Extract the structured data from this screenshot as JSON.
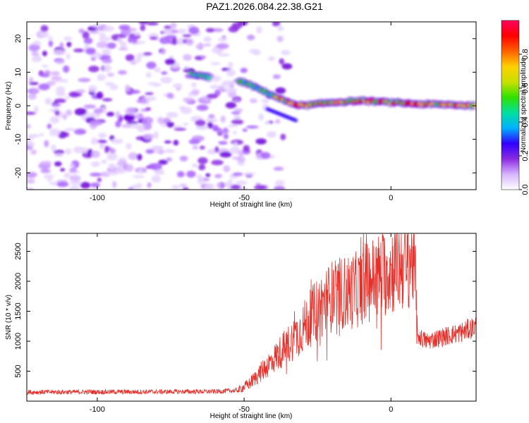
{
  "title": "PAZ1.2026.084.22.38.G21",
  "chart_data": [
    {
      "type": "heatmap",
      "name": "spectrogram",
      "xlabel": "Height of straight line (km)",
      "ylabel": "Frequency (Hz)",
      "xlim": [
        -124,
        29
      ],
      "ylim": [
        -25,
        25
      ],
      "xticks": [
        -100,
        -50,
        0
      ],
      "yticks": [
        -20,
        -10,
        0,
        10,
        20
      ],
      "xtick_labels": [
        "-100",
        "-50",
        "0"
      ],
      "ytick_labels": [
        "-20",
        "-10",
        "0",
        "10",
        "20"
      ],
      "colorbar": {
        "label": "Normalized spectral amplitude",
        "range": [
          0.0,
          1.0
        ],
        "ticks": [
          0.0,
          0.2,
          0.4,
          0.6,
          0.8
        ],
        "tick_labels": [
          "0.0",
          "0.2",
          "0.4",
          "0.6",
          "0.8"
        ],
        "colors": [
          "#ffffff",
          "#d8b4ff",
          "#8a2be2",
          "#3000ff",
          "#00b0ff",
          "#00e0a0",
          "#30e000",
          "#c8e000",
          "#ffd000",
          "#ff6000",
          "#ff0000",
          "#ff0060"
        ]
      },
      "signal_track": {
        "description_points_height_km": [
          -70,
          -65,
          -60,
          -50,
          -45,
          -40,
          -35,
          -30,
          -25,
          -20,
          -10,
          0,
          10,
          20,
          29
        ],
        "description_points_freq_hz": [
          10,
          9,
          8,
          7,
          5,
          3,
          1,
          0,
          0.5,
          1,
          1.5,
          1,
          0.5,
          0.3,
          0
        ]
      }
    },
    {
      "type": "line",
      "name": "snr",
      "xlabel": "Height of straight line (km)",
      "ylabel": "SNR (10 * v/v)",
      "xlim": [
        -124,
        29
      ],
      "ylim": [
        0,
        2800
      ],
      "xticks": [
        -100,
        -50,
        0
      ],
      "yticks": [
        500,
        1000,
        1500,
        2000,
        2500
      ],
      "xtick_labels": [
        "-100",
        "-50",
        "0"
      ],
      "ytick_labels": [
        "500",
        "1000",
        "1500",
        "2000",
        "2500"
      ],
      "color": "#e8302a",
      "envelope": {
        "x": [
          -124,
          -60,
          -52,
          -48,
          -44,
          -40,
          -36,
          -32,
          -28,
          -24,
          -20,
          -16,
          -12,
          -8,
          -4,
          0,
          4,
          8,
          9,
          12,
          16,
          20,
          24,
          29
        ],
        "y": [
          150,
          160,
          180,
          300,
          500,
          700,
          900,
          1100,
          1350,
          1600,
          1750,
          1800,
          1850,
          2000,
          2100,
          2200,
          2300,
          2400,
          1100,
          1000,
          1050,
          1100,
          1150,
          1250
        ]
      }
    }
  ]
}
